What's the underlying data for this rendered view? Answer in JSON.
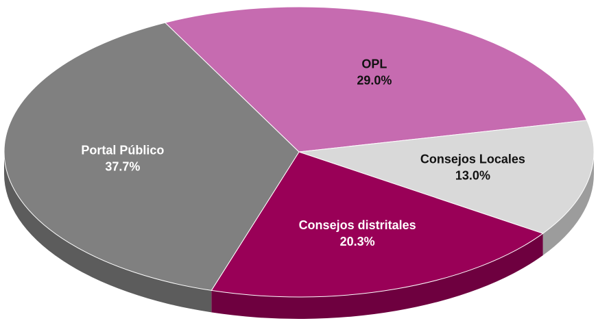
{
  "chart_data": {
    "type": "pie",
    "categories": [
      "OPL",
      "Consejos Locales",
      "Consejos distritales",
      "Portal Público"
    ],
    "values": [
      29.0,
      13.0,
      20.3,
      37.7
    ],
    "value_labels": [
      "29.0%",
      "13.0%",
      "20.3%",
      "37.7%"
    ],
    "colors": [
      "#c66bb0",
      "#d9d9d9",
      "#990057",
      "#808080"
    ],
    "label_colors": [
      "#111111",
      "#111111",
      "#ffffff",
      "#ffffff"
    ]
  }
}
